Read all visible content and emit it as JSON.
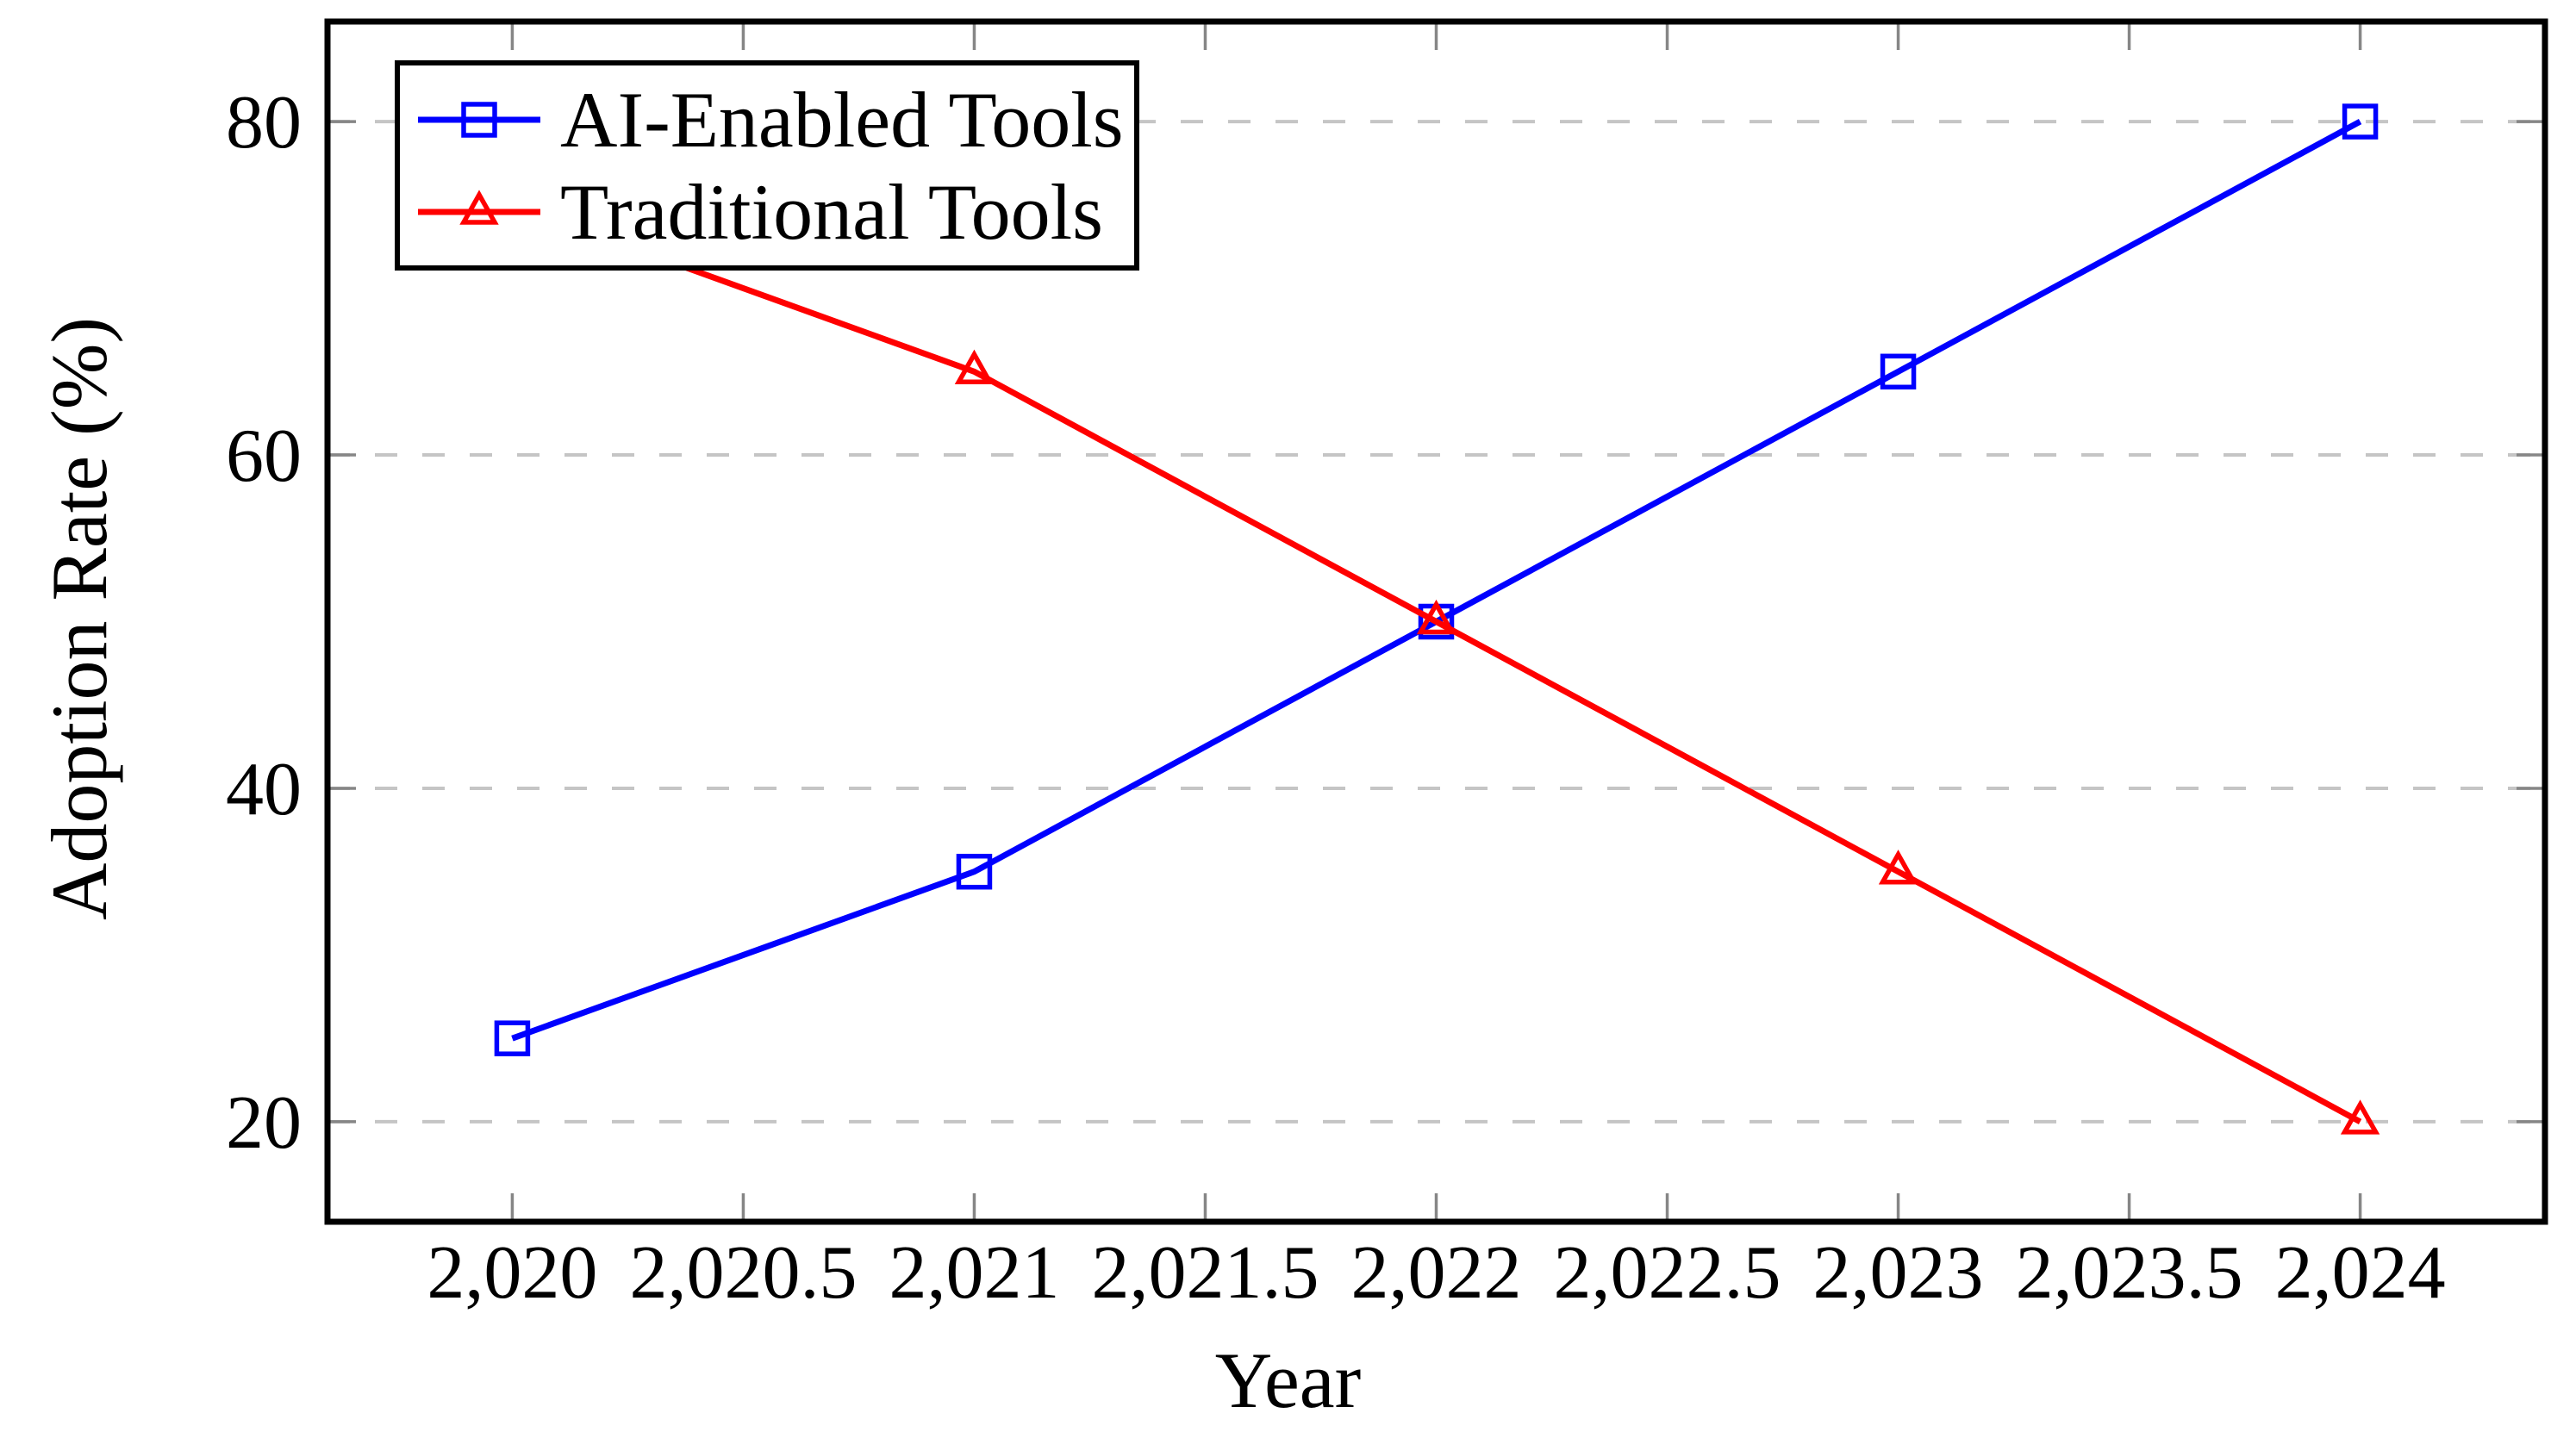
{
  "chart_data": {
    "type": "line",
    "x": [
      2020,
      2021,
      2022,
      2023,
      2024
    ],
    "series": [
      {
        "name": "AI-Enabled Tools",
        "color": "#0000ff",
        "marker": "square",
        "values": [
          25,
          35,
          50,
          65,
          80
        ]
      },
      {
        "name": "Traditional Tools",
        "color": "#ff0000",
        "marker": "triangle",
        "values": [
          75,
          65,
          50,
          35,
          20
        ]
      }
    ],
    "xlabel": "Year",
    "ylabel": "Adoption Rate (%)",
    "xlim": [
      2019.6,
      2024.4
    ],
    "ylim": [
      14,
      86
    ],
    "xticks": {
      "values": [
        2020,
        2020.5,
        2021,
        2021.5,
        2022,
        2022.5,
        2023,
        2023.5,
        2024
      ],
      "labels": [
        "2,020",
        "2,020.5",
        "2,021",
        "2,021.5",
        "2,022",
        "2,022.5",
        "2,023",
        "2,023.5",
        "2,024"
      ]
    },
    "yticks": {
      "values": [
        20,
        40,
        60,
        80
      ],
      "labels": [
        "20",
        "40",
        "60",
        "80"
      ]
    },
    "grid": {
      "horizontal": true,
      "vertical": false,
      "style": "dashed",
      "color": "#c5c5c5"
    },
    "legend": {
      "position": "top-left",
      "border_color": "#000000",
      "background": "#ffffff"
    },
    "axis_color": "#000000",
    "tick_color": "#868686",
    "note_hidden_point": "red 2020 marker (75) is covered by the legend box"
  }
}
